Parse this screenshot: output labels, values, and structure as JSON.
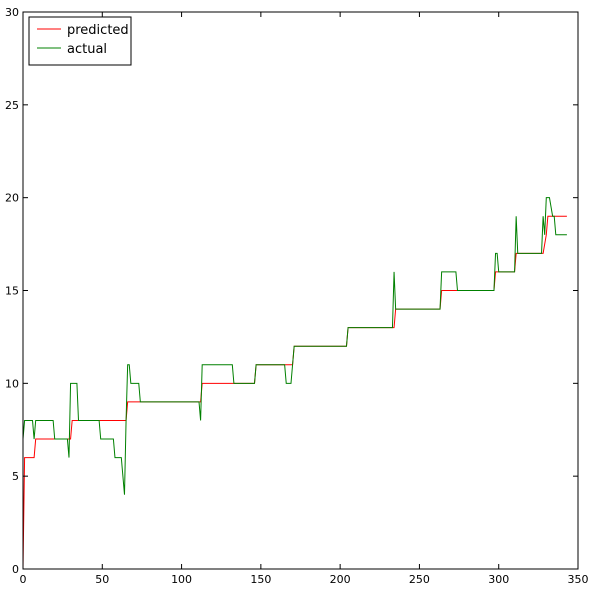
{
  "chart_data": {
    "type": "line",
    "xlim": [
      0,
      350
    ],
    "ylim": [
      0,
      30
    ],
    "xticks": [
      0,
      50,
      100,
      150,
      200,
      250,
      300,
      350
    ],
    "yticks": [
      0,
      5,
      10,
      15,
      20,
      25,
      30
    ],
    "grid": false,
    "legend_position": "top-left",
    "series": [
      {
        "name": "predicted",
        "color": "#ff0000",
        "points": [
          [
            0,
            0
          ],
          [
            1,
            6
          ],
          [
            7,
            6
          ],
          [
            8,
            7
          ],
          [
            30,
            7
          ],
          [
            31,
            8
          ],
          [
            65,
            8
          ],
          [
            66,
            9
          ],
          [
            112,
            9
          ],
          [
            113,
            10
          ],
          [
            146,
            10
          ],
          [
            147,
            11
          ],
          [
            170,
            11
          ],
          [
            171,
            12
          ],
          [
            204,
            12
          ],
          [
            205,
            13
          ],
          [
            234,
            13
          ],
          [
            235,
            14
          ],
          [
            263,
            14
          ],
          [
            264,
            15
          ],
          [
            297,
            15
          ],
          [
            298,
            16
          ],
          [
            310,
            16
          ],
          [
            311,
            17
          ],
          [
            328,
            17
          ],
          [
            330,
            18
          ],
          [
            331,
            19
          ],
          [
            343,
            19
          ]
        ]
      },
      {
        "name": "actual",
        "color": "#008000",
        "points": [
          [
            0,
            7
          ],
          [
            1,
            8
          ],
          [
            5,
            8
          ],
          [
            6,
            8
          ],
          [
            7,
            7
          ],
          [
            8,
            8
          ],
          [
            19,
            8
          ],
          [
            20,
            7
          ],
          [
            28,
            7
          ],
          [
            29,
            6
          ],
          [
            30,
            10
          ],
          [
            34,
            10
          ],
          [
            35,
            8
          ],
          [
            48,
            8
          ],
          [
            49,
            7
          ],
          [
            57,
            7
          ],
          [
            58,
            6
          ],
          [
            62,
            6
          ],
          [
            63,
            5
          ],
          [
            64,
            4
          ],
          [
            65,
            8
          ],
          [
            66,
            11
          ],
          [
            67,
            11
          ],
          [
            68,
            10
          ],
          [
            71,
            10
          ],
          [
            73,
            10
          ],
          [
            74,
            9
          ],
          [
            111,
            9
          ],
          [
            112,
            8
          ],
          [
            113,
            11
          ],
          [
            132,
            11
          ],
          [
            133,
            10
          ],
          [
            146,
            10
          ],
          [
            147,
            11
          ],
          [
            165,
            11
          ],
          [
            166,
            10
          ],
          [
            169,
            10
          ],
          [
            170,
            11
          ],
          [
            171,
            12
          ],
          [
            204,
            12
          ],
          [
            205,
            13
          ],
          [
            233,
            13
          ],
          [
            234,
            16
          ],
          [
            235,
            14
          ],
          [
            263,
            14
          ],
          [
            264,
            16
          ],
          [
            273,
            16
          ],
          [
            274,
            15
          ],
          [
            297,
            15
          ],
          [
            298,
            17
          ],
          [
            299,
            17
          ],
          [
            300,
            16
          ],
          [
            310,
            16
          ],
          [
            311,
            19
          ],
          [
            312,
            17
          ],
          [
            327,
            17
          ],
          [
            328,
            19
          ],
          [
            329,
            18
          ],
          [
            330,
            20
          ],
          [
            332,
            20
          ],
          [
            334,
            19
          ],
          [
            335,
            19
          ],
          [
            336,
            18
          ],
          [
            343,
            18
          ]
        ]
      }
    ]
  }
}
